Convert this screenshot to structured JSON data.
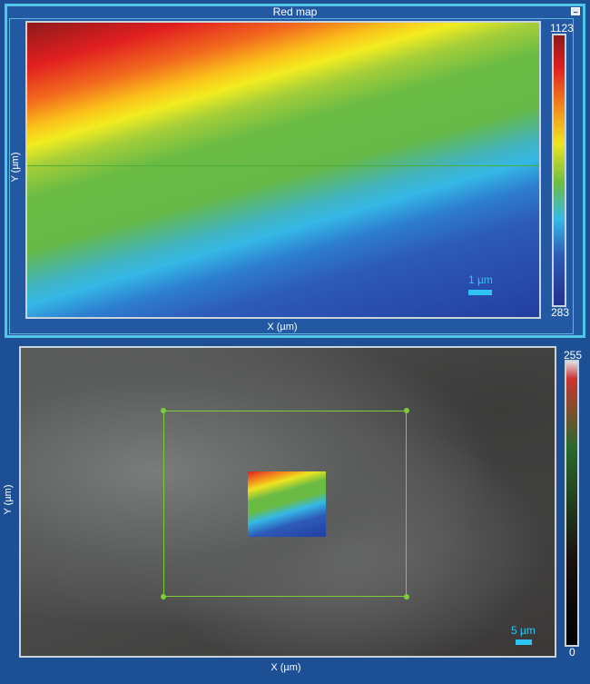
{
  "top_panel": {
    "title": "Red map",
    "x_label": "X (µm)",
    "y_label": "Y (µm)",
    "colorbar": {
      "max": "1123",
      "min": "283",
      "colormap": "jet"
    },
    "scale_bar": "1 µm",
    "minimize_icon": "minimize-icon"
  },
  "bottom_panel": {
    "x_label": "X (µm)",
    "y_label": "Y (µm)",
    "colorbar": {
      "max": "255",
      "min": "0"
    },
    "scale_bar": "5 µm",
    "roi_color": "#7ccc3c"
  }
}
